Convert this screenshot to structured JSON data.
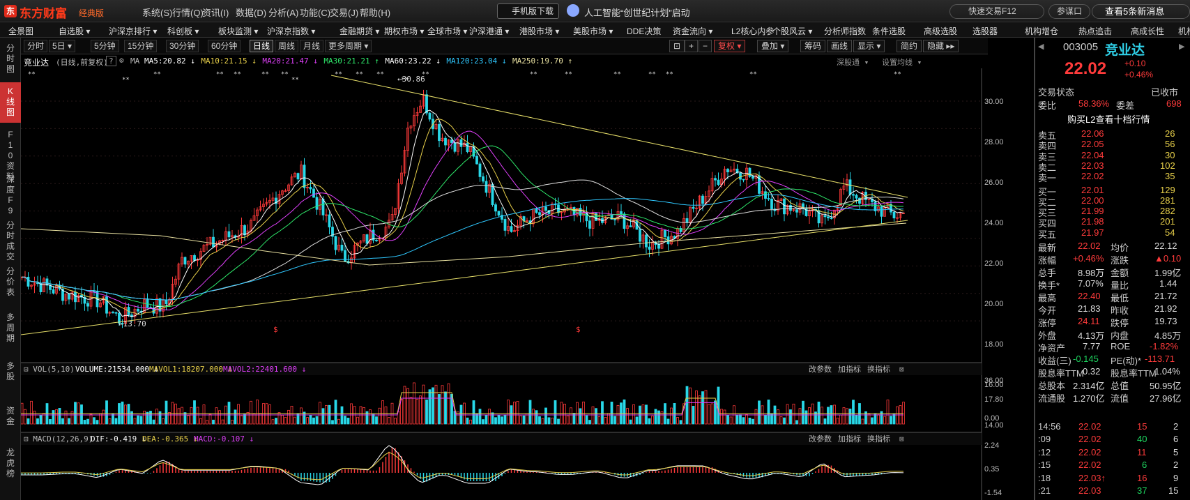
{
  "app": {
    "logo": "东方财富",
    "edition": "经典版",
    "menus": [
      "系统(S)",
      "行情(Q)",
      "资讯(I)",
      "数据(D)",
      "分析(A)",
      "功能(C)",
      "交易(J)",
      "帮助(H)"
    ],
    "mobile_download": "手机版下载",
    "ai_banner": "人工智能“创世纪计划”启动",
    "quick_trade": "快速交易F12",
    "me": "参谋口",
    "news": "查看5条新消息"
  },
  "navbar": [
    "全景图",
    "自选股 ▾",
    "沪深京排行 ▾",
    "科创板 ▾",
    "板块监测 ▾",
    "沪深京指数 ▾",
    "金融期货 ▾",
    "期权市场 ▾",
    "全球市场 ▾",
    "沪深港通 ▾",
    "港股市场 ▾",
    "美股市场 ▾",
    "DDE决策",
    "资金流向 ▾",
    "L2核心内参",
    "个股风云 ▾",
    "分析师指数",
    "条件选股",
    "高级选股",
    "选股器",
    "机构增仓",
    "热点追击",
    "高成长性",
    "机构持"
  ],
  "lefttabs": [
    {
      "label": "分时图",
      "active": false
    },
    {
      "label": "K线图",
      "active": true
    },
    {
      "label": "F10资料",
      "active": false
    },
    {
      "label": "深度F9",
      "active": false
    },
    {
      "label": "分时成交",
      "active": false
    },
    {
      "label": "分价表",
      "active": false
    },
    {
      "label": "多周期",
      "active": false
    },
    {
      "label": "多股",
      "active": false
    },
    {
      "label": "资金",
      "active": false
    },
    {
      "label": "龙虎榜",
      "active": false
    }
  ],
  "toolbar": {
    "periods": [
      "分时",
      "5日 ▾",
      "5分钟",
      "15分钟",
      "30分钟",
      "60分钟",
      "日线",
      "周线",
      "月线",
      "更多周期 ▾"
    ],
    "active_period": "日线",
    "right": [
      "复权 ▾",
      "叠加 ▾",
      "筹码",
      "画线",
      "显示 ▾",
      "简约",
      "隐藏 ▸▸"
    ]
  },
  "legend": {
    "stock": "竞业达",
    "mode": "(日线,前复权)",
    "ma_label": "MA",
    "ma": [
      {
        "name": "MA5:20.82",
        "color": "#ffffff",
        "dir": "↓"
      },
      {
        "name": "MA10:21.15",
        "color": "#e8d04a",
        "dir": "↓"
      },
      {
        "name": "MA20:21.47",
        "color": "#e040fb",
        "dir": "↓"
      },
      {
        "name": "MA30:21.21",
        "color": "#2ee86a",
        "dir": "↑"
      },
      {
        "name": "MA60:23.22",
        "color": "#ffffff",
        "dir": "↓"
      },
      {
        "name": "MA120:23.04",
        "color": "#2fc8ff",
        "dir": "↓"
      },
      {
        "name": "MA250:19.70",
        "color": "#e8e0a0",
        "dir": "↑"
      }
    ],
    "deep": "深股通 ▾",
    "settings": "设置均线 ▾"
  },
  "price_axis": [
    "30.00",
    "28.00",
    "26.00",
    "24.00",
    "22.00",
    "20.00",
    "18.00",
    "16.00",
    "14.00"
  ],
  "price_marks": {
    "high": "30.86",
    "low": "13.70"
  },
  "vol_legend": {
    "title": "VOL(5,10)",
    "volume": "VOLUME:21534.000",
    "mavol1": "MAVOL1:18207.000",
    "mavol2": "MAVOL2:22401.600",
    "actions": [
      "改参数",
      "加指标",
      "换指标"
    ]
  },
  "vol_axis": [
    "36.00",
    "17.80",
    "0.00"
  ],
  "macd_legend": {
    "title": "MACD(12,26,9)",
    "dif": "DIF:-0.419",
    "dea": "DEA:-0.365",
    "macd": "MACD:-0.107",
    "actions": [
      "改参数",
      "加指标",
      "换指标"
    ]
  },
  "macd_axis": [
    "2.24",
    "0.35",
    "-1.54"
  ],
  "quote": {
    "code": "003005",
    "name": "竞业达",
    "price": "22.02",
    "change": "+0.10",
    "pct": "+0.46%",
    "status_label": "交易状态",
    "status": "已收市",
    "weibi_label": "委比",
    "weibi": "58.36%",
    "weicha_label": "委差",
    "weicha": "698",
    "l2": "购买L2查看十档行情",
    "asks": [
      {
        "label": "卖五",
        "price": "22.06",
        "vol": "26"
      },
      {
        "label": "卖四",
        "price": "22.05",
        "vol": "56"
      },
      {
        "label": "卖三",
        "price": "22.04",
        "vol": "30"
      },
      {
        "label": "卖二",
        "price": "22.03",
        "vol": "102"
      },
      {
        "label": "卖一",
        "price": "22.02",
        "vol": "35"
      }
    ],
    "bids": [
      {
        "label": "买一",
        "price": "22.01",
        "vol": "129"
      },
      {
        "label": "买二",
        "price": "22.00",
        "vol": "281"
      },
      {
        "label": "买三",
        "price": "21.99",
        "vol": "282"
      },
      {
        "label": "买四",
        "price": "21.98",
        "vol": "201"
      },
      {
        "label": "买五",
        "price": "21.97",
        "vol": "54"
      }
    ],
    "stats": [
      [
        "最新",
        "22.02",
        "均价",
        "22.12"
      ],
      [
        "涨幅",
        "+0.46%",
        "涨跌",
        "▲0.10"
      ],
      [
        "总手",
        "8.98万",
        "金额",
        "1.99亿"
      ],
      [
        "换手*",
        "7.07%",
        "量比",
        "1.44"
      ],
      [
        "最高",
        "22.40",
        "最低",
        "21.72"
      ],
      [
        "今开",
        "21.83",
        "昨收",
        "21.92"
      ],
      [
        "涨停",
        "24.11",
        "跌停",
        "19.73"
      ],
      [
        "外盘",
        "4.13万",
        "内盘",
        "4.85万"
      ],
      [
        "净资产",
        "7.77",
        "ROE",
        "-1.82%"
      ],
      [
        "收益(三)",
        "-0.145",
        "PE(动)*",
        "-113.71"
      ],
      [
        "股息率TTM",
        "0.32",
        "股息率TTM",
        "1.04%"
      ],
      [
        "总股本",
        "2.314亿",
        "总值",
        "50.95亿"
      ],
      [
        "流通股",
        "1.270亿",
        "流值",
        "27.96亿"
      ]
    ],
    "ticks": [
      {
        "time": "14:56",
        "price": "22.02",
        "vol": "15",
        "n": "2"
      },
      {
        "time": ":09",
        "price": "22.02",
        "vol": "40",
        "n": "6"
      },
      {
        "time": ":12",
        "price": "22.02",
        "vol": "11",
        "n": "5"
      },
      {
        "time": ":15",
        "price": "22.02",
        "vol": "6",
        "n": "2"
      },
      {
        "time": ":18",
        "price": "22.03↑",
        "vol": "16",
        "n": "9"
      },
      {
        "time": ":21",
        "price": "22.03",
        "vol": "37",
        "n": "15"
      }
    ]
  }
}
